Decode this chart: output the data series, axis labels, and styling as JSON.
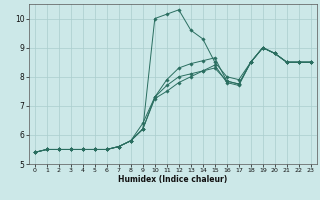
{
  "xlabel": "Humidex (Indice chaleur)",
  "bg_color": "#cce8e8",
  "line_color": "#2a6e60",
  "grid_color": "#aacece",
  "xlim": [
    -0.5,
    23.5
  ],
  "ylim": [
    5,
    10.5
  ],
  "xticks": [
    0,
    1,
    2,
    3,
    4,
    5,
    6,
    7,
    8,
    9,
    10,
    11,
    12,
    13,
    14,
    15,
    16,
    17,
    18,
    19,
    20,
    21,
    22,
    23
  ],
  "yticks": [
    5,
    6,
    7,
    8,
    9,
    10
  ],
  "lines": [
    [
      5.4,
      5.5,
      5.5,
      5.5,
      5.5,
      5.5,
      5.5,
      5.6,
      5.8,
      6.2,
      10.0,
      10.15,
      10.3,
      9.6,
      9.3,
      8.5,
      8.0,
      7.9,
      8.5,
      9.0,
      8.8,
      8.5,
      8.5,
      8.5
    ],
    [
      5.4,
      5.5,
      5.5,
      5.5,
      5.5,
      5.5,
      5.5,
      5.6,
      5.8,
      6.2,
      7.25,
      7.5,
      7.8,
      8.0,
      8.2,
      8.4,
      7.8,
      7.7,
      8.5,
      9.0,
      8.8,
      8.5,
      8.5,
      8.5
    ],
    [
      5.4,
      5.5,
      5.5,
      5.5,
      5.5,
      5.5,
      5.5,
      5.6,
      5.8,
      6.2,
      7.3,
      7.9,
      8.3,
      8.45,
      8.55,
      8.65,
      7.85,
      7.75,
      8.5,
      9.0,
      8.8,
      8.5,
      8.5,
      8.5
    ],
    [
      5.4,
      5.5,
      5.5,
      5.5,
      5.5,
      5.5,
      5.5,
      5.6,
      5.8,
      6.4,
      7.3,
      7.7,
      8.0,
      8.1,
      8.2,
      8.3,
      7.85,
      7.75,
      8.5,
      9.0,
      8.8,
      8.5,
      8.5,
      8.5
    ]
  ]
}
